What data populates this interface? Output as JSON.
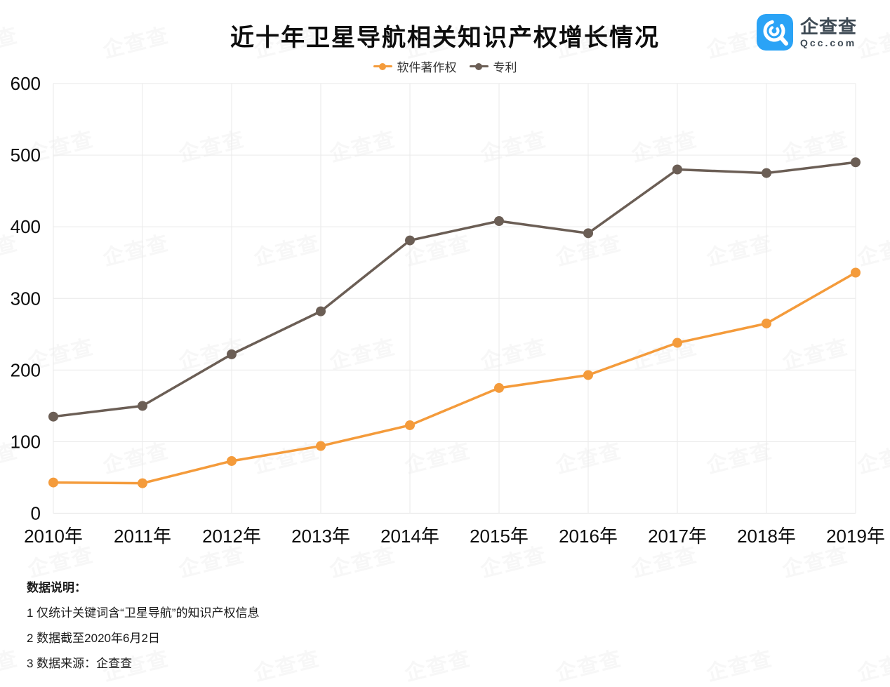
{
  "title": "近十年卫星导航相关知识产权增长情况",
  "logo": {
    "name": "企查查",
    "domain": "Qcc.com",
    "brand_color": "#2aa3f6"
  },
  "watermark_text": "企查查",
  "chart_data": {
    "type": "line",
    "title": "近十年卫星导航相关知识产权增长情况",
    "categories": [
      "2010年",
      "2011年",
      "2012年",
      "2013年",
      "2014年",
      "2015年",
      "2016年",
      "2017年",
      "2018年",
      "2019年"
    ],
    "series": [
      {
        "name": "软件著作权",
        "color": "#F49B3B",
        "values": [
          43,
          42,
          73,
          94,
          123,
          175,
          193,
          238,
          265,
          336
        ]
      },
      {
        "name": "专利",
        "color": "#6B5E55",
        "values": [
          135,
          150,
          222,
          282,
          381,
          408,
          391,
          480,
          475,
          490
        ]
      }
    ],
    "xlabel": "",
    "ylabel": "",
    "ylim": [
      0,
      600
    ],
    "ytick_step": 100,
    "grid": true,
    "legend_position": "top"
  },
  "notes": {
    "heading": "数据说明：",
    "items": [
      "1 仅统计关键词含“卫星导航”的知识产权信息",
      "2 数据截至2020年6月2日",
      "3 数据来源：企查查"
    ]
  }
}
